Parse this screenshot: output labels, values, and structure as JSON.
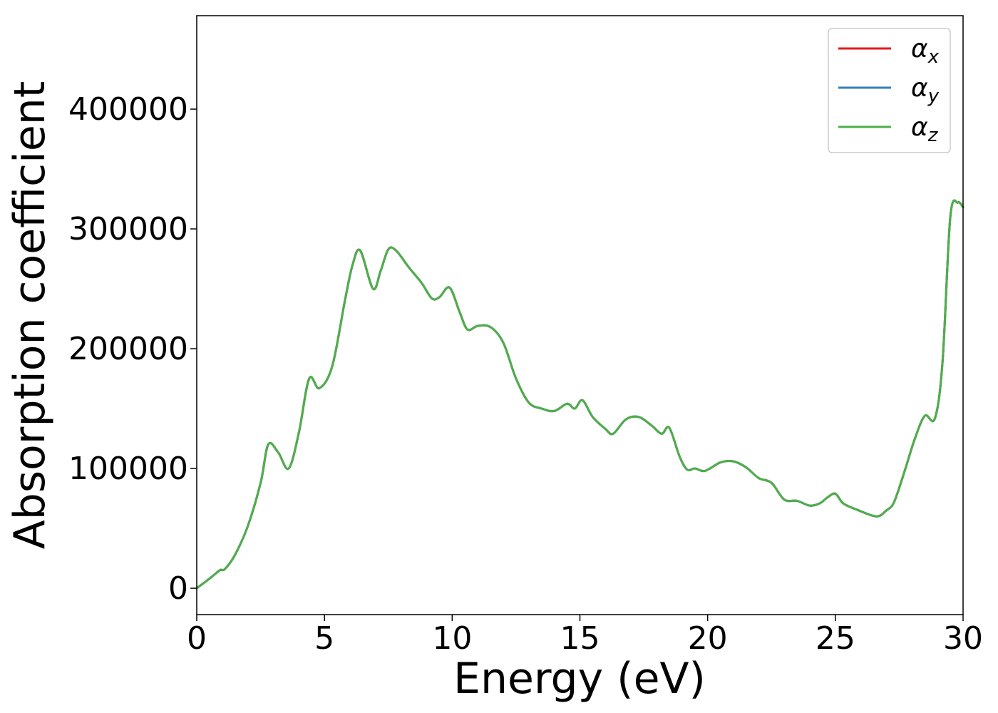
{
  "chart_data": {
    "type": "line",
    "title": "",
    "xlabel": "Energy (eV)",
    "ylabel": "Absorption coefficient",
    "xlim": [
      0,
      30
    ],
    "ylim": [
      -22000,
      478000
    ],
    "x_ticks": [
      0,
      5,
      10,
      15,
      20,
      25,
      30
    ],
    "x_tick_labels": [
      "0",
      "5",
      "10",
      "15",
      "20",
      "25",
      "30"
    ],
    "y_ticks": [
      0,
      100000,
      200000,
      300000,
      400000
    ],
    "y_tick_labels": [
      "0",
      "100000",
      "200000",
      "300000",
      "400000"
    ],
    "grid": false,
    "legend_position": "top-right",
    "legend": [
      {
        "symbol": "α",
        "subscript": "x",
        "color": "#e41a1c"
      },
      {
        "symbol": "α",
        "subscript": "y",
        "color": "#377eb8"
      },
      {
        "symbol": "α",
        "subscript": "z",
        "color": "#4daf4a"
      }
    ],
    "x": [
      0,
      0.5,
      0.9,
      1.1,
      1.5,
      2.0,
      2.5,
      2.8,
      3.2,
      3.6,
      4.0,
      4.4,
      4.8,
      5.3,
      5.8,
      6.1,
      6.4,
      6.9,
      7.2,
      7.5,
      7.8,
      8.3,
      8.8,
      9.2,
      9.5,
      9.9,
      10.3,
      10.6,
      11.0,
      11.5,
      12.0,
      12.5,
      13.0,
      13.5,
      14.0,
      14.5,
      14.8,
      15.1,
      15.5,
      16.0,
      16.3,
      16.8,
      17.3,
      17.8,
      18.2,
      18.5,
      18.9,
      19.2,
      19.5,
      19.9,
      20.5,
      21.0,
      21.5,
      22.0,
      22.5,
      23.0,
      23.5,
      24.0,
      24.4,
      24.7,
      25.0,
      25.3,
      25.8,
      26.6,
      27.0,
      27.3,
      27.7,
      28.1,
      28.5,
      28.9,
      29.2,
      29.5,
      29.8,
      30.0
    ],
    "series": [
      {
        "name": "α_x",
        "color": "#e41a1c",
        "values": [
          0,
          8000,
          15000,
          16000,
          28000,
          52000,
          88000,
          120000,
          113000,
          100000,
          130000,
          175000,
          167000,
          185000,
          240000,
          270000,
          282000,
          250000,
          265000,
          283000,
          282000,
          268000,
          255000,
          242000,
          243000,
          251000,
          230000,
          216000,
          219000,
          218000,
          205000,
          175000,
          155000,
          150000,
          148000,
          154000,
          150000,
          157000,
          143000,
          133000,
          129000,
          141000,
          143000,
          136000,
          129000,
          134000,
          110000,
          99000,
          100000,
          98000,
          105000,
          106000,
          101000,
          92000,
          88000,
          74000,
          73000,
          69000,
          71000,
          76000,
          79000,
          71000,
          66000,
          60000,
          65000,
          72000,
          97000,
          124000,
          144000,
          142000,
          190000,
          310000,
          322000,
          318000
        ]
      },
      {
        "name": "α_y",
        "color": "#377eb8",
        "values": [
          0,
          8000,
          15000,
          16000,
          28000,
          52000,
          88000,
          120000,
          113000,
          100000,
          130000,
          175000,
          167000,
          185000,
          240000,
          270000,
          282000,
          250000,
          265000,
          283000,
          282000,
          268000,
          255000,
          242000,
          243000,
          251000,
          230000,
          216000,
          219000,
          218000,
          205000,
          175000,
          155000,
          150000,
          148000,
          154000,
          150000,
          157000,
          143000,
          133000,
          129000,
          141000,
          143000,
          136000,
          129000,
          134000,
          110000,
          99000,
          100000,
          98000,
          105000,
          106000,
          101000,
          92000,
          88000,
          74000,
          73000,
          69000,
          71000,
          76000,
          79000,
          71000,
          66000,
          60000,
          65000,
          72000,
          97000,
          124000,
          144000,
          142000,
          190000,
          310000,
          322000,
          318000
        ]
      },
      {
        "name": "α_z",
        "color": "#4daf4a",
        "values": [
          0,
          8000,
          15000,
          16000,
          28000,
          52000,
          88000,
          120000,
          113000,
          100000,
          130000,
          175000,
          167000,
          185000,
          240000,
          270000,
          282000,
          250000,
          265000,
          283000,
          282000,
          268000,
          255000,
          242000,
          243000,
          251000,
          230000,
          216000,
          219000,
          218000,
          205000,
          175000,
          155000,
          150000,
          148000,
          154000,
          150000,
          157000,
          143000,
          133000,
          129000,
          141000,
          143000,
          136000,
          129000,
          134000,
          110000,
          99000,
          100000,
          98000,
          105000,
          106000,
          101000,
          92000,
          88000,
          74000,
          73000,
          69000,
          71000,
          76000,
          79000,
          71000,
          66000,
          60000,
          65000,
          72000,
          97000,
          124000,
          144000,
          142000,
          190000,
          310000,
          322000,
          318000
        ]
      }
    ]
  }
}
